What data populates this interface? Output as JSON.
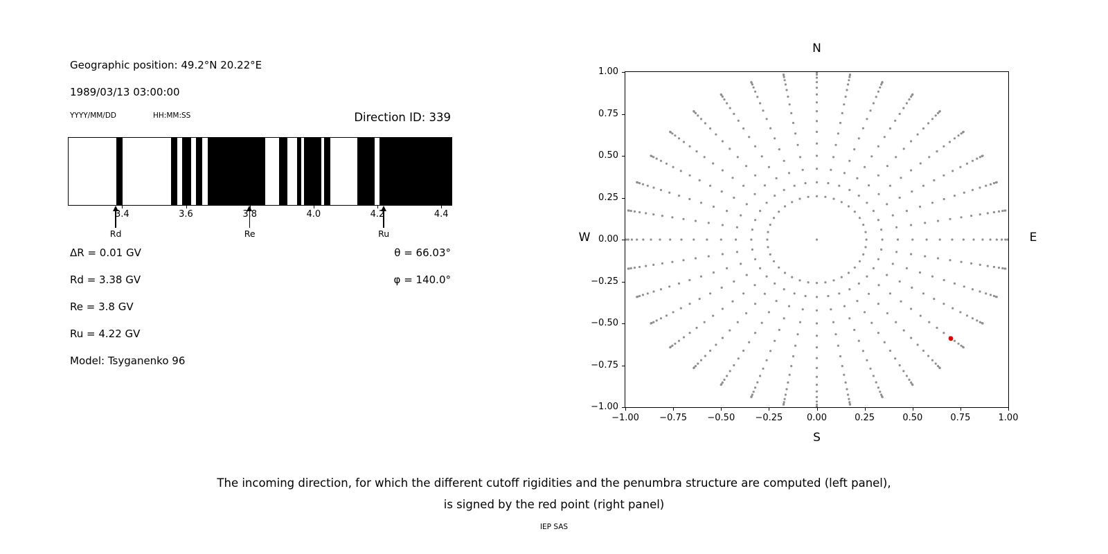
{
  "header": {
    "geo_position": "Geographic position: 49.2°N 20.22°E",
    "datetime": "1989/03/13 03:00:00",
    "date_format_label": "YYYY/MM/DD",
    "time_format_label": "HH:MM:SS",
    "direction_id": "Direction ID: 339"
  },
  "params": {
    "delta_r": "ΔR = 0.01 GV",
    "rd": "Rd = 3.38 GV",
    "re": "Re = 3.8 GV",
    "ru": "Ru = 4.22 GV",
    "model": "Model: Tsyganenko 96",
    "theta": "θ = 66.03°",
    "phi": "φ = 140.0°"
  },
  "caption": {
    "line1": "The incoming direction, for which the different cutoff rigidities and the penumbra structure are computed (left panel),",
    "line2": "is signed by the red point (right panel)",
    "credit": "IEP SAS"
  },
  "chart_data": [
    {
      "type": "bar",
      "name": "penumbra-structure",
      "xlim": [
        3.23,
        4.43
      ],
      "xticks": [
        3.4,
        3.6,
        3.8,
        4.0,
        4.2,
        4.4
      ],
      "bands_gv": [
        [
          3.38,
          3.4
        ],
        [
          3.55,
          3.57
        ],
        [
          3.585,
          3.615
        ],
        [
          3.63,
          3.65
        ],
        [
          3.665,
          3.845
        ],
        [
          3.89,
          3.915
        ],
        [
          3.945,
          3.96
        ],
        [
          3.968,
          4.022
        ],
        [
          4.03,
          4.05
        ],
        [
          4.135,
          4.19
        ],
        [
          4.205,
          4.43
        ]
      ],
      "markers": [
        {
          "label": "Rd",
          "value_gv": 3.38
        },
        {
          "label": "Re",
          "value_gv": 3.8
        },
        {
          "label": "Ru",
          "value_gv": 4.22
        }
      ],
      "band_color": "#000000",
      "background": "#ffffff"
    },
    {
      "type": "scatter",
      "name": "incoming-direction-map",
      "compass": {
        "top": "N",
        "bottom": "S",
        "left": "W",
        "right": "E"
      },
      "xlim": [
        -1,
        1
      ],
      "ylim": [
        -1,
        1
      ],
      "xticks": [
        -1.0,
        -0.75,
        -0.5,
        -0.25,
        0.0,
        0.25,
        0.5,
        0.75,
        1.0
      ],
      "yticks": [
        -1.0,
        -0.75,
        -0.5,
        -0.25,
        0.0,
        0.25,
        0.5,
        0.75,
        1.0
      ],
      "grid": false,
      "dot_grid": {
        "azimuth_deg": {
          "start": 0,
          "step": 10,
          "count": 36
        },
        "zenith_deg": {
          "start": 15,
          "step": 5,
          "end": 90
        },
        "radius_rule": "sin(zenith)",
        "includes_center_point": true
      },
      "dot_color": "#8f8f8f",
      "highlight_point": {
        "x": 0.7,
        "y": -0.59,
        "color": "#e60000"
      }
    }
  ]
}
